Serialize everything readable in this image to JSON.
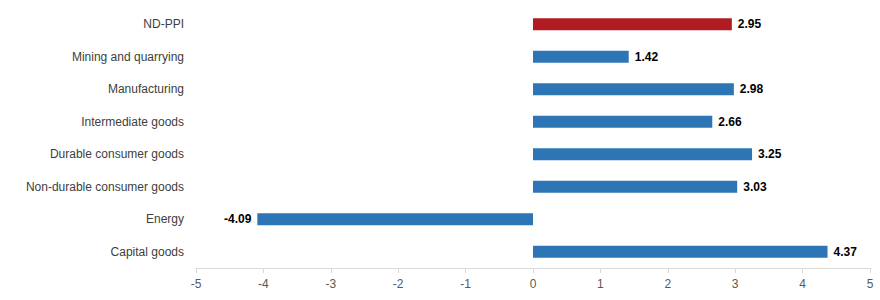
{
  "chart_data": {
    "type": "bar",
    "orientation": "horizontal",
    "categories": [
      "ND-PPI",
      "Mining and quarrying",
      "Manufacturing",
      "Intermediate goods",
      "Durable consumer goods",
      "Non-durable consumer goods",
      "Energy",
      "Capital goods"
    ],
    "values": [
      2.95,
      1.42,
      2.98,
      2.66,
      3.25,
      3.03,
      -4.09,
      4.37
    ],
    "colors": [
      "#b01c22",
      "#2e75b6",
      "#2e75b6",
      "#2e75b6",
      "#2e75b6",
      "#2e75b6",
      "#2e75b6",
      "#2e75b6"
    ],
    "xlim": [
      -5,
      5
    ],
    "xticks": [
      -5,
      -4,
      -3,
      -2,
      -1,
      0,
      1,
      2,
      3,
      4,
      5
    ],
    "grid": false,
    "data_labels": true
  }
}
